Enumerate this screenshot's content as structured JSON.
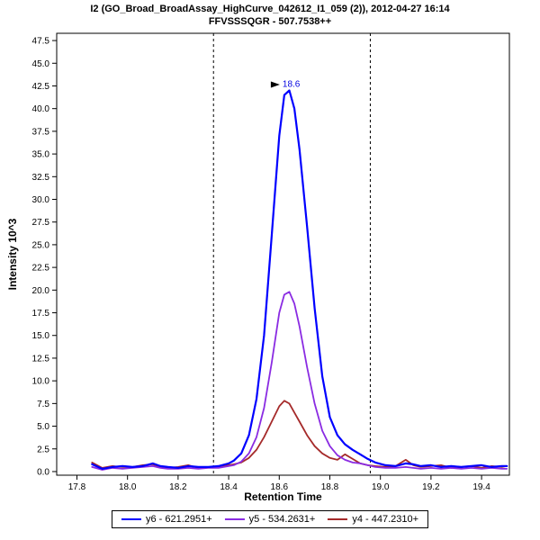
{
  "chart_data": {
    "type": "line",
    "title": "I2 (GO_Broad_BroadAssay_HighCurve_042612_I1_059 (2)), 2012-04-27 16:14",
    "subtitle": "FFVSSSQGR - 507.7538++",
    "xlabel": "Retention Time",
    "ylabel": "Intensity 10^3",
    "xlim": [
      17.72,
      19.51
    ],
    "ylim": [
      -0.4,
      48.3
    ],
    "x_ticks": [
      17.8,
      18.0,
      18.2,
      18.4,
      18.6,
      18.8,
      19.0,
      19.2,
      19.4
    ],
    "y_ticks": [
      0.0,
      2.5,
      5.0,
      7.5,
      10.0,
      12.5,
      15.0,
      17.5,
      20.0,
      22.5,
      25.0,
      27.5,
      30.0,
      32.5,
      35.0,
      37.5,
      40.0,
      42.5,
      45.0,
      47.5
    ],
    "grid": false,
    "legend_position": "bottom",
    "boundary_lines_x": [
      18.34,
      18.96
    ],
    "peak_annotation": {
      "text": "18.6",
      "x": 18.62,
      "y": 42.0,
      "color": "#0000E0"
    },
    "axis_color": "#000000",
    "series": [
      {
        "name": "y6 - 621.2951+",
        "color": "#0000FF",
        "width": 2.2,
        "points": [
          [
            17.86,
            0.8
          ],
          [
            17.9,
            0.3
          ],
          [
            17.94,
            0.5
          ],
          [
            17.98,
            0.6
          ],
          [
            18.02,
            0.5
          ],
          [
            18.06,
            0.6
          ],
          [
            18.1,
            0.9
          ],
          [
            18.13,
            0.6
          ],
          [
            18.16,
            0.5
          ],
          [
            18.2,
            0.4
          ],
          [
            18.24,
            0.6
          ],
          [
            18.28,
            0.5
          ],
          [
            18.32,
            0.5
          ],
          [
            18.36,
            0.6
          ],
          [
            18.4,
            0.9
          ],
          [
            18.42,
            1.2
          ],
          [
            18.45,
            2.0
          ],
          [
            18.48,
            4.0
          ],
          [
            18.51,
            8.0
          ],
          [
            18.54,
            15.0
          ],
          [
            18.57,
            26.0
          ],
          [
            18.6,
            37.0
          ],
          [
            18.62,
            41.5
          ],
          [
            18.64,
            42.0
          ],
          [
            18.66,
            40.0
          ],
          [
            18.68,
            35.5
          ],
          [
            18.71,
            27.0
          ],
          [
            18.74,
            18.0
          ],
          [
            18.77,
            10.5
          ],
          [
            18.8,
            6.0
          ],
          [
            18.83,
            4.0
          ],
          [
            18.86,
            3.0
          ],
          [
            18.89,
            2.4
          ],
          [
            18.92,
            1.9
          ],
          [
            18.95,
            1.4
          ],
          [
            18.98,
            1.0
          ],
          [
            19.02,
            0.7
          ],
          [
            19.06,
            0.6
          ],
          [
            19.1,
            0.9
          ],
          [
            19.13,
            0.8
          ],
          [
            19.16,
            0.6
          ],
          [
            19.2,
            0.7
          ],
          [
            19.24,
            0.5
          ],
          [
            19.28,
            0.6
          ],
          [
            19.32,
            0.5
          ],
          [
            19.36,
            0.6
          ],
          [
            19.4,
            0.7
          ],
          [
            19.44,
            0.5
          ],
          [
            19.48,
            0.6
          ],
          [
            19.5,
            0.6
          ]
        ]
      },
      {
        "name": "y5 - 534.2631+",
        "color": "#8A2BE2",
        "width": 1.8,
        "points": [
          [
            17.86,
            0.5
          ],
          [
            17.9,
            0.2
          ],
          [
            17.94,
            0.4
          ],
          [
            17.98,
            0.3
          ],
          [
            18.02,
            0.4
          ],
          [
            18.06,
            0.5
          ],
          [
            18.1,
            0.6
          ],
          [
            18.13,
            0.4
          ],
          [
            18.16,
            0.3
          ],
          [
            18.2,
            0.3
          ],
          [
            18.24,
            0.4
          ],
          [
            18.28,
            0.3
          ],
          [
            18.32,
            0.4
          ],
          [
            18.36,
            0.4
          ],
          [
            18.4,
            0.6
          ],
          [
            18.42,
            0.7
          ],
          [
            18.45,
            1.1
          ],
          [
            18.48,
            2.0
          ],
          [
            18.51,
            3.8
          ],
          [
            18.54,
            7.0
          ],
          [
            18.57,
            12.0
          ],
          [
            18.6,
            17.5
          ],
          [
            18.62,
            19.5
          ],
          [
            18.64,
            19.8
          ],
          [
            18.66,
            18.5
          ],
          [
            18.68,
            16.0
          ],
          [
            18.71,
            11.5
          ],
          [
            18.74,
            7.5
          ],
          [
            18.77,
            4.5
          ],
          [
            18.8,
            2.8
          ],
          [
            18.83,
            1.8
          ],
          [
            18.86,
            1.3
          ],
          [
            18.89,
            1.0
          ],
          [
            18.92,
            0.9
          ],
          [
            18.95,
            0.7
          ],
          [
            18.98,
            0.5
          ],
          [
            19.02,
            0.4
          ],
          [
            19.06,
            0.4
          ],
          [
            19.1,
            0.5
          ],
          [
            19.13,
            0.4
          ],
          [
            19.16,
            0.3
          ],
          [
            19.2,
            0.4
          ],
          [
            19.24,
            0.3
          ],
          [
            19.28,
            0.4
          ],
          [
            19.32,
            0.3
          ],
          [
            19.36,
            0.4
          ],
          [
            19.4,
            0.3
          ],
          [
            19.44,
            0.4
          ],
          [
            19.48,
            0.3
          ],
          [
            19.5,
            0.3
          ]
        ]
      },
      {
        "name": "y4 - 447.2310+",
        "color": "#A52A2A",
        "width": 1.8,
        "points": [
          [
            17.86,
            1.0
          ],
          [
            17.9,
            0.4
          ],
          [
            17.94,
            0.6
          ],
          [
            17.98,
            0.5
          ],
          [
            18.02,
            0.5
          ],
          [
            18.06,
            0.7
          ],
          [
            18.1,
            0.8
          ],
          [
            18.13,
            0.5
          ],
          [
            18.16,
            0.4
          ],
          [
            18.2,
            0.5
          ],
          [
            18.24,
            0.7
          ],
          [
            18.28,
            0.4
          ],
          [
            18.32,
            0.5
          ],
          [
            18.36,
            0.5
          ],
          [
            18.4,
            0.7
          ],
          [
            18.42,
            0.8
          ],
          [
            18.45,
            1.0
          ],
          [
            18.48,
            1.5
          ],
          [
            18.51,
            2.4
          ],
          [
            18.54,
            3.8
          ],
          [
            18.57,
            5.5
          ],
          [
            18.6,
            7.2
          ],
          [
            18.62,
            7.8
          ],
          [
            18.64,
            7.5
          ],
          [
            18.66,
            6.5
          ],
          [
            18.68,
            5.5
          ],
          [
            18.71,
            4.0
          ],
          [
            18.74,
            2.8
          ],
          [
            18.77,
            2.0
          ],
          [
            18.8,
            1.5
          ],
          [
            18.83,
            1.3
          ],
          [
            18.86,
            1.9
          ],
          [
            18.89,
            1.4
          ],
          [
            18.92,
            0.9
          ],
          [
            18.95,
            0.7
          ],
          [
            18.98,
            0.6
          ],
          [
            19.02,
            0.5
          ],
          [
            19.06,
            0.6
          ],
          [
            19.1,
            1.3
          ],
          [
            19.13,
            0.7
          ],
          [
            19.16,
            0.5
          ],
          [
            19.2,
            0.6
          ],
          [
            19.24,
            0.7
          ],
          [
            19.28,
            0.4
          ],
          [
            19.32,
            0.5
          ],
          [
            19.36,
            0.6
          ],
          [
            19.4,
            0.4
          ],
          [
            19.44,
            0.6
          ],
          [
            19.48,
            0.5
          ],
          [
            19.5,
            0.6
          ]
        ]
      }
    ]
  }
}
